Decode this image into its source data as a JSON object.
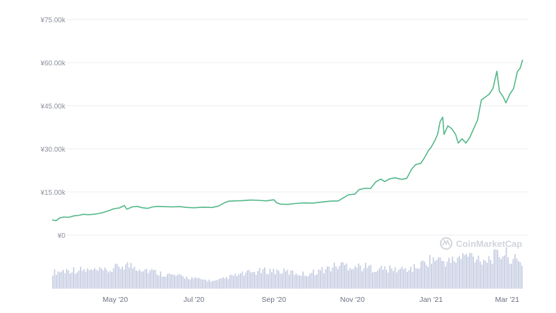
{
  "colors": {
    "price_line": "#52b788",
    "volume_bars": "#cdd3e6",
    "grid": "#ececf0",
    "tick_text": "#8a8f99",
    "watermark": "#d2d5dc"
  },
  "watermark": {
    "text": "CoinMarketCap",
    "icon": "coinmarketcap-logo-icon"
  },
  "chart_data": {
    "type": "line",
    "title": "",
    "xlabel": "",
    "ylabel": "",
    "grid": true,
    "ylim": [
      0,
      75000
    ],
    "y_ticks": [
      {
        "value": 0,
        "label": "¥0"
      },
      {
        "value": 15000,
        "label": "¥15.00k"
      },
      {
        "value": 30000,
        "label": "¥30.00k"
      },
      {
        "value": 45000,
        "label": "¥45.00k"
      },
      {
        "value": 60000,
        "label": "¥60.00k"
      },
      {
        "value": 75000,
        "label": "¥75.00k"
      }
    ],
    "xlim": [
      "2020-03-13",
      "2021-03-13"
    ],
    "x_ticks": [
      {
        "value": "2020-05-01",
        "label": "May '20"
      },
      {
        "value": "2020-07-01",
        "label": "Jul '20"
      },
      {
        "value": "2020-09-01",
        "label": "Sep '20"
      },
      {
        "value": "2020-11-01",
        "label": "Nov '20"
      },
      {
        "value": "2021-01-01",
        "label": "Jan '21"
      },
      {
        "value": "2021-03-01",
        "label": "Mar '21"
      }
    ],
    "series": [
      {
        "type": "line",
        "x": [
          "2020-03-13",
          "2020-03-16",
          "2020-03-19",
          "2020-03-22",
          "2020-03-26",
          "2020-03-30",
          "2020-04-03",
          "2020-04-06",
          "2020-04-10",
          "2020-04-14",
          "2020-04-18",
          "2020-04-22",
          "2020-04-26",
          "2020-04-30",
          "2020-05-04",
          "2020-05-08",
          "2020-05-10",
          "2020-05-14",
          "2020-05-18",
          "2020-05-22",
          "2020-05-26",
          "2020-05-30",
          "2020-06-03",
          "2020-06-08",
          "2020-06-14",
          "2020-06-20",
          "2020-06-26",
          "2020-07-01",
          "2020-07-08",
          "2020-07-15",
          "2020-07-20",
          "2020-07-25",
          "2020-07-28",
          "2020-08-02",
          "2020-08-08",
          "2020-08-14",
          "2020-08-20",
          "2020-08-26",
          "2020-09-01",
          "2020-09-03",
          "2020-09-06",
          "2020-09-12",
          "2020-09-18",
          "2020-09-25",
          "2020-10-01",
          "2020-10-06",
          "2020-10-10",
          "2020-10-15",
          "2020-10-21",
          "2020-10-25",
          "2020-10-29",
          "2020-11-03",
          "2020-11-06",
          "2020-11-11",
          "2020-11-15",
          "2020-11-19",
          "2020-11-23",
          "2020-11-26",
          "2020-11-30",
          "2020-12-04",
          "2020-12-09",
          "2020-12-13",
          "2020-12-17",
          "2020-12-20",
          "2020-12-24",
          "2020-12-27",
          "2020-12-30",
          "2021-01-01",
          "2021-01-04",
          "2021-01-06",
          "2021-01-08",
          "2021-01-10",
          "2021-01-11",
          "2021-01-14",
          "2021-01-17",
          "2021-01-20",
          "2021-01-22",
          "2021-01-25",
          "2021-01-28",
          "2021-01-31",
          "2021-02-03",
          "2021-02-06",
          "2021-02-09",
          "2021-02-12",
          "2021-02-15",
          "2021-02-18",
          "2021-02-21",
          "2021-02-23",
          "2021-02-26",
          "2021-02-28",
          "2021-03-03",
          "2021-03-06",
          "2021-03-09",
          "2021-03-11",
          "2021-03-13"
        ],
        "values": [
          5300,
          5000,
          6000,
          6300,
          6200,
          6700,
          6900,
          7200,
          7100,
          7200,
          7500,
          7900,
          8500,
          9200,
          9400,
          10300,
          9000,
          9800,
          10000,
          9500,
          9300,
          9800,
          10000,
          9900,
          9800,
          9900,
          9600,
          9500,
          9700,
          9600,
          10100,
          11300,
          11800,
          11900,
          12000,
          12200,
          12100,
          11900,
          12300,
          11300,
          10800,
          10700,
          11000,
          11200,
          11100,
          11400,
          11600,
          11800,
          11900,
          13000,
          14000,
          14300,
          15800,
          16300,
          16200,
          18500,
          19500,
          18600,
          19600,
          19900,
          19400,
          19700,
          23000,
          24500,
          25000,
          27000,
          29500,
          30500,
          33000,
          35000,
          39500,
          41000,
          35000,
          38000,
          37000,
          35000,
          32000,
          33500,
          32000,
          34000,
          37000,
          40000,
          47000,
          48000,
          49000,
          51000,
          57000,
          50000,
          48000,
          46000,
          49000,
          51000,
          57000,
          58000,
          61000
        ]
      },
      {
        "type": "bar",
        "name": "volume",
        "x": [
          "2020-03-13",
          "2020-03-27",
          "2020-04-10",
          "2020-04-24",
          "2020-05-08",
          "2020-05-22",
          "2020-06-05",
          "2020-06-19",
          "2020-07-03",
          "2020-07-17",
          "2020-07-31",
          "2020-08-14",
          "2020-08-28",
          "2020-09-11",
          "2020-09-25",
          "2020-10-09",
          "2020-10-23",
          "2020-11-06",
          "2020-11-20",
          "2020-12-04",
          "2020-12-18",
          "2021-01-01",
          "2021-01-15",
          "2021-01-29",
          "2021-02-12",
          "2021-02-26",
          "2021-03-12"
        ],
        "values": [
          0.35,
          0.42,
          0.4,
          0.38,
          0.55,
          0.45,
          0.32,
          0.25,
          0.18,
          0.12,
          0.26,
          0.35,
          0.4,
          0.36,
          0.3,
          0.42,
          0.55,
          0.5,
          0.45,
          0.42,
          0.45,
          0.7,
          0.62,
          0.8,
          0.68,
          0.85,
          0.55
        ]
      }
    ]
  }
}
